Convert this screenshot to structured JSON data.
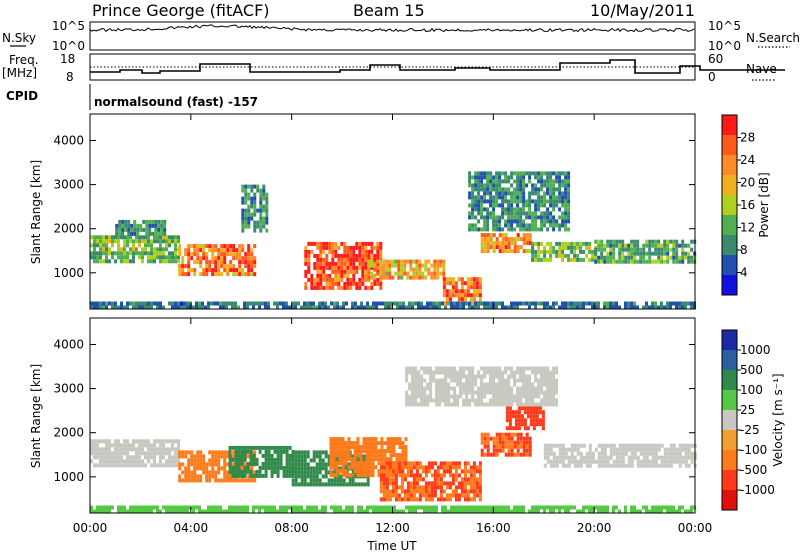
{
  "header": {
    "station": "Prince George (fitACF)",
    "beam": "Beam 15",
    "date": "10/May/2011"
  },
  "panels": {
    "noise": {
      "left_label": "N.Sky",
      "right_label": "N.Search",
      "left_ticks": [
        "10^5",
        "10^0"
      ],
      "right_ticks": [
        "10^5",
        "10^0"
      ]
    },
    "freq": {
      "left_label_1": "Freq.",
      "left_label_2": "[MHz]",
      "right_label": "Nave",
      "left_ticks": [
        "18",
        "8"
      ],
      "right_ticks": [
        "60",
        "0"
      ]
    },
    "cpid": {
      "label": "CPID",
      "text": "normalsound (fast) -157"
    }
  },
  "xaxis": {
    "label": "Time UT",
    "ticks": [
      "00:00",
      "04:00",
      "08:00",
      "12:00",
      "16:00",
      "20:00",
      "00:00"
    ]
  },
  "power_colorbar": {
    "label": "Power [dB]",
    "ticks": [
      "28",
      "24",
      "20",
      "16",
      "12",
      "8",
      "4"
    ],
    "colors": [
      "#ff1a1a",
      "#ff5a1a",
      "#ff8a2a",
      "#f0b020",
      "#b0d020",
      "#50b050",
      "#3a8a70",
      "#2050b0",
      "#1010e0"
    ]
  },
  "velocity_colorbar": {
    "label": "Velocity [m s⁻¹]",
    "ticks": [
      "1000",
      "500",
      "100",
      "25",
      "-25",
      "-100",
      "-500",
      "-1000"
    ],
    "colors": [
      "#1a2aa0",
      "#2a60a0",
      "#2f8a4a",
      "#55c845",
      "#c8c8c0",
      "#f0a030",
      "#ff7a1a",
      "#ff3a1a",
      "#e01010"
    ]
  },
  "chart_data": [
    {
      "type": "heatmap",
      "title": "Power",
      "xlabel": "Time UT",
      "ylabel": "Slant Range [km]",
      "xlim": [
        0,
        24
      ],
      "ylim": [
        180,
        4600
      ],
      "yticks": [
        "1000",
        "2000",
        "3000",
        "4000"
      ],
      "colorbar": {
        "label": "Power [dB]",
        "range": [
          0,
          30
        ]
      },
      "regions": [
        {
          "t0": 0.0,
          "t1": 3.5,
          "r0": 1250,
          "r1": 1850,
          "value": 12
        },
        {
          "t0": 1.0,
          "t1": 3.0,
          "r0": 1850,
          "r1": 2200,
          "value": 8
        },
        {
          "t0": 3.5,
          "t1": 6.5,
          "r0": 1000,
          "r1": 1650,
          "value": 24
        },
        {
          "t0": 6.0,
          "t1": 7.0,
          "r0": 2000,
          "r1": 3000,
          "value": 8
        },
        {
          "t0": 8.5,
          "t1": 11.5,
          "r0": 700,
          "r1": 1700,
          "value": 28
        },
        {
          "t0": 11.0,
          "t1": 14.0,
          "r0": 850,
          "r1": 1300,
          "value": 20
        },
        {
          "t0": 14.0,
          "t1": 15.5,
          "r0": 300,
          "r1": 900,
          "value": 24
        },
        {
          "t0": 15.5,
          "t1": 17.5,
          "r0": 1450,
          "r1": 1900,
          "value": 22
        },
        {
          "t0": 15.0,
          "t1": 19.0,
          "r0": 2000,
          "r1": 3300,
          "value": 8
        },
        {
          "t0": 17.5,
          "t1": 20.0,
          "r0": 1300,
          "r1": 1700,
          "value": 12
        },
        {
          "t0": 20.0,
          "t1": 24.0,
          "r0": 1250,
          "r1": 1750,
          "value": 10
        },
        {
          "t0": 0.0,
          "t1": 24.0,
          "r0": 200,
          "r1": 350,
          "value": 6
        }
      ]
    },
    {
      "type": "heatmap",
      "title": "Velocity",
      "xlabel": "Time UT",
      "ylabel": "Slant Range [km]",
      "xlim": [
        0,
        24
      ],
      "ylim": [
        180,
        4600
      ],
      "yticks": [
        "1000",
        "2000",
        "3000",
        "4000"
      ],
      "colorbar": {
        "label": "Velocity [m s⁻¹]",
        "range": [
          -1000,
          1000
        ]
      },
      "regions": [
        {
          "t0": 0.0,
          "t1": 3.5,
          "r0": 1250,
          "r1": 1850,
          "value": 0
        },
        {
          "t0": 3.5,
          "t1": 6.5,
          "r0": 900,
          "r1": 1600,
          "value": -200
        },
        {
          "t0": 5.5,
          "t1": 8.0,
          "r0": 1000,
          "r1": 1700,
          "value": 150
        },
        {
          "t0": 8.0,
          "t1": 11.0,
          "r0": 800,
          "r1": 1600,
          "value": 150
        },
        {
          "t0": 9.5,
          "t1": 12.5,
          "r0": 1000,
          "r1": 1900,
          "value": -150
        },
        {
          "t0": 11.5,
          "t1": 15.5,
          "r0": 500,
          "r1": 1350,
          "value": -300
        },
        {
          "t0": 15.5,
          "t1": 17.5,
          "r0": 1500,
          "r1": 2000,
          "value": -300
        },
        {
          "t0": 16.5,
          "t1": 18.0,
          "r0": 2100,
          "r1": 2600,
          "value": -400
        },
        {
          "t0": 12.5,
          "t1": 18.5,
          "r0": 2600,
          "r1": 3500,
          "value": 0
        },
        {
          "t0": 18.0,
          "t1": 24.0,
          "r0": 1250,
          "r1": 1750,
          "value": 0
        },
        {
          "t0": 0.0,
          "t1": 24.0,
          "r0": 200,
          "r1": 350,
          "value": 30
        }
      ]
    }
  ]
}
